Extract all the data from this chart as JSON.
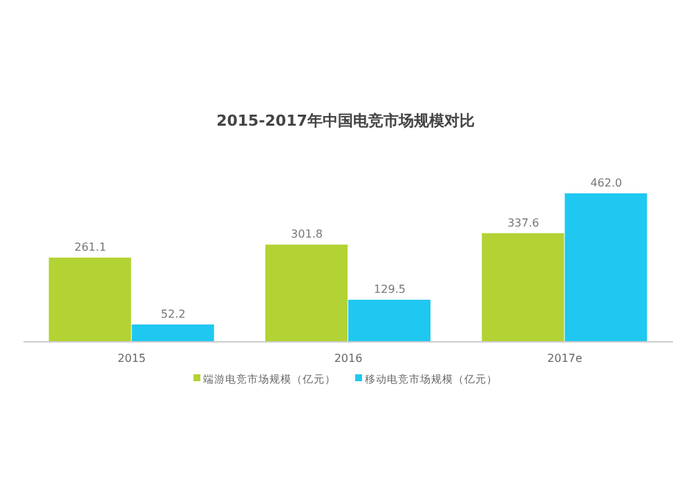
{
  "chart_data": {
    "type": "bar",
    "title": "2015-2017年中国电竞市场规模对比",
    "categories": [
      "2015",
      "2016",
      "2017e"
    ],
    "series": [
      {
        "name": "端游电竞市场规模（亿元）",
        "color": "#b3d233",
        "values": [
          261.1,
          301.8,
          337.6
        ],
        "value_labels": [
          "261.1",
          "301.8",
          "337.6"
        ]
      },
      {
        "name": "移动电竞市场规模（亿元）",
        "color": "#1fc8f0",
        "values": [
          52.2,
          129.5,
          462.0
        ],
        "value_labels": [
          "52.2",
          "129.5",
          "462.0"
        ]
      }
    ],
    "legend": "bottom"
  }
}
